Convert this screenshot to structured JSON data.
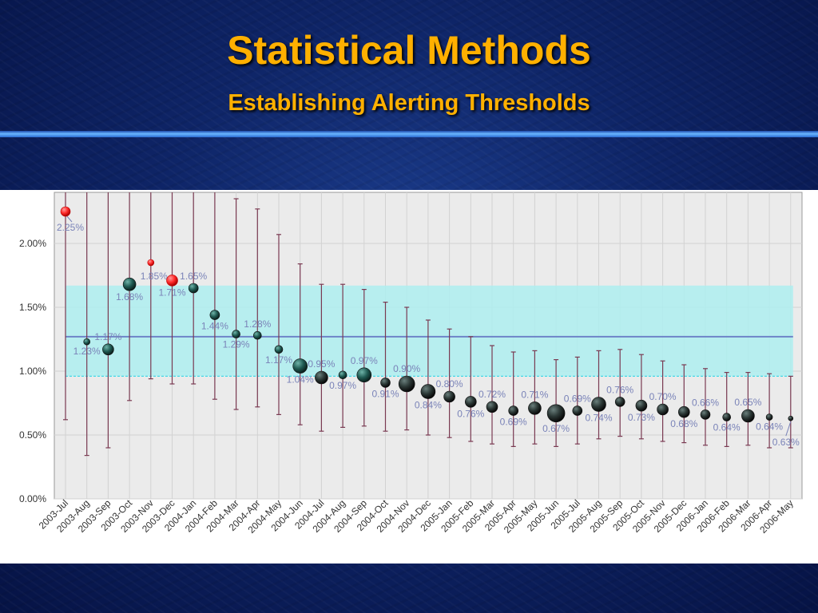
{
  "slide": {
    "title": "Statistical Methods",
    "subtitle": "Establishing Alerting Thresholds"
  },
  "colors": {
    "band": "#aeeef0",
    "mean_line": "#6a7ec6",
    "lower_line": "#46d8e6",
    "whisker": "#7a3a52",
    "point_normal": "#1e1e1e",
    "point_alert": "#ff2a2a",
    "label": "#7a83b8"
  },
  "chart_data": {
    "type": "scatter",
    "ylim": [
      0,
      2.4
    ],
    "yticks": [
      "0.00%",
      "0.50%",
      "1.00%",
      "1.50%",
      "2.00%"
    ],
    "ytick_values": [
      0,
      0.5,
      1.0,
      1.5,
      2.0
    ],
    "grid": true,
    "band": {
      "low": 0.96,
      "high": 1.67
    },
    "mean": 1.27,
    "categories": [
      "2003-Jul",
      "2003-Aug",
      "2003-Sep",
      "2003-Oct",
      "2003-Nov",
      "2003-Dec",
      "2004-Jan",
      "2004-Feb",
      "2004-Mar",
      "2004-Apr",
      "2004-May",
      "2004-Jun",
      "2004-Jul",
      "2004-Aug",
      "2004-Sep",
      "2004-Oct",
      "2004-Nov",
      "2004-Dec",
      "2005-Jan",
      "2005-Feb",
      "2005-Mar",
      "2005-Apr",
      "2005-May",
      "2005-Jun",
      "2005-Jul",
      "2005-Aug",
      "2005-Sep",
      "2005-Oct",
      "2005-Nov",
      "2005-Dec",
      "2006-Jan",
      "2006-Feb",
      "2006-Mar",
      "2006-Apr",
      "2006-May"
    ],
    "values": [
      2.25,
      1.23,
      1.17,
      1.68,
      1.85,
      1.71,
      1.65,
      1.44,
      1.29,
      1.28,
      1.17,
      1.04,
      0.95,
      0.97,
      0.97,
      0.91,
      0.9,
      0.84,
      0.8,
      0.76,
      0.72,
      0.69,
      0.71,
      0.67,
      0.69,
      0.74,
      0.76,
      0.73,
      0.7,
      0.68,
      0.66,
      0.64,
      0.65,
      0.64,
      0.63
    ],
    "labels": [
      "2.25%",
      "1.23%",
      "1.17%",
      "1.68%",
      "1.85%",
      "1.71%",
      "1.65%",
      "1.44%",
      "1.29%",
      "1.28%",
      "1.17%",
      "1.04%",
      "0.95%",
      "0.97%",
      "0.97%",
      "0.91%",
      "0.90%",
      "0.84%",
      "0.80%",
      "0.76%",
      "0.72%",
      "0.69%",
      "0.71%",
      "0.67%",
      "0.69%",
      "0.74%",
      "0.76%",
      "0.73%",
      "0.70%",
      "0.68%",
      "0.66%",
      "0.64%",
      "0.65%",
      "0.64%",
      "0.63%"
    ],
    "ci_low": [
      0.62,
      0.34,
      0.4,
      0.77,
      0.94,
      0.9,
      0.9,
      0.78,
      0.7,
      0.72,
      0.66,
      0.58,
      0.53,
      0.56,
      0.57,
      0.53,
      0.54,
      0.5,
      0.48,
      0.45,
      0.43,
      0.41,
      0.43,
      0.41,
      0.43,
      0.47,
      0.49,
      0.47,
      0.45,
      0.44,
      0.42,
      0.41,
      0.42,
      0.4,
      0.4
    ],
    "ci_high": [
      2.4,
      2.4,
      2.4,
      2.4,
      2.4,
      2.4,
      2.4,
      2.4,
      2.35,
      2.27,
      2.07,
      1.84,
      1.68,
      1.68,
      1.64,
      1.54,
      1.5,
      1.4,
      1.33,
      1.27,
      1.2,
      1.15,
      1.16,
      1.09,
      1.11,
      1.16,
      1.17,
      1.13,
      1.08,
      1.05,
      1.02,
      0.99,
      0.99,
      0.98,
      0.96
    ],
    "sizes": [
      6,
      4,
      7,
      8,
      4,
      7,
      6,
      6,
      5,
      5,
      5,
      9,
      8,
      5,
      9,
      6,
      10,
      9,
      7,
      7,
      7,
      6,
      8,
      11,
      6,
      9,
      6,
      7,
      7,
      7,
      6,
      5,
      8,
      4,
      3
    ],
    "alerts": [
      true,
      false,
      false,
      false,
      true,
      true,
      false,
      false,
      false,
      false,
      false,
      false,
      false,
      false,
      false,
      false,
      false,
      false,
      false,
      false,
      false,
      false,
      false,
      false,
      false,
      false,
      false,
      false,
      false,
      false,
      false,
      false,
      false,
      false,
      false
    ],
    "label_pos": [
      "below",
      "below",
      "above",
      "below",
      "left",
      "below",
      "above",
      "below",
      "below",
      "above",
      "below",
      "below",
      "above",
      "below",
      "above",
      "below",
      "above",
      "below",
      "above",
      "below",
      "above",
      "below",
      "above",
      "below",
      "above",
      "below",
      "above",
      "below",
      "above",
      "below",
      "above",
      "below",
      "above",
      "below",
      "below"
    ]
  }
}
